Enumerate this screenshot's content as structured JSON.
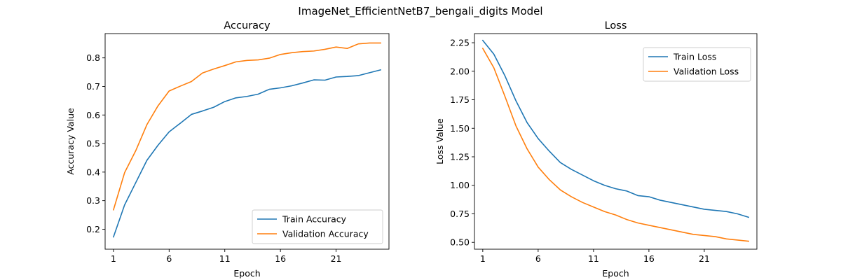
{
  "figure_title": "ImageNet_EfficientNetB7_bengali_digits Model",
  "chart_data": [
    {
      "type": "line",
      "title": "Accuracy",
      "xlabel": "Epoch",
      "ylabel": "Accuracy Value",
      "xlim": [
        0.25,
        25.75
      ],
      "ylim": [
        0.13,
        0.885
      ],
      "xticks": [
        1,
        6,
        11,
        16,
        21
      ],
      "yticks": [
        0.2,
        0.3,
        0.4,
        0.5,
        0.6,
        0.7,
        0.8
      ],
      "ytick_decimals": 1,
      "legend_position": "lower-right",
      "x": [
        1,
        2,
        3,
        4,
        5,
        6,
        7,
        8,
        9,
        10,
        11,
        12,
        13,
        14,
        15,
        16,
        17,
        18,
        19,
        20,
        21,
        22,
        23,
        24,
        25
      ],
      "series": [
        {
          "name": "Train Accuracy",
          "color": "#1f77b4",
          "values": [
            0.173,
            0.285,
            0.363,
            0.441,
            0.494,
            0.541,
            0.571,
            0.602,
            0.614,
            0.627,
            0.647,
            0.66,
            0.665,
            0.673,
            0.69,
            0.695,
            0.702,
            0.712,
            0.723,
            0.722,
            0.733,
            0.735,
            0.738,
            0.748,
            0.758
          ]
        },
        {
          "name": "Validation Accuracy",
          "color": "#ff7f0e",
          "values": [
            0.268,
            0.398,
            0.475,
            0.566,
            0.632,
            0.684,
            0.701,
            0.717,
            0.747,
            0.761,
            0.773,
            0.786,
            0.791,
            0.793,
            0.799,
            0.812,
            0.818,
            0.822,
            0.824,
            0.83,
            0.838,
            0.833,
            0.849,
            0.852,
            0.852
          ]
        }
      ]
    },
    {
      "type": "line",
      "title": "Loss",
      "xlabel": "Epoch",
      "ylabel": "Loss Value",
      "xlim": [
        0.25,
        25.75
      ],
      "ylim": [
        0.44,
        2.33
      ],
      "xticks": [
        1,
        6,
        11,
        16,
        21
      ],
      "yticks": [
        0.5,
        0.75,
        1.0,
        1.25,
        1.5,
        1.75,
        2.0,
        2.25
      ],
      "ytick_decimals": 2,
      "legend_position": "upper-right",
      "x": [
        1,
        2,
        3,
        4,
        5,
        6,
        7,
        8,
        9,
        10,
        11,
        12,
        13,
        14,
        15,
        16,
        17,
        18,
        19,
        20,
        21,
        22,
        23,
        24,
        25
      ],
      "series": [
        {
          "name": "Train Loss",
          "color": "#1f77b4",
          "values": [
            2.27,
            2.15,
            1.96,
            1.74,
            1.55,
            1.41,
            1.3,
            1.2,
            1.14,
            1.09,
            1.04,
            1.0,
            0.97,
            0.95,
            0.91,
            0.9,
            0.87,
            0.85,
            0.83,
            0.81,
            0.79,
            0.78,
            0.77,
            0.75,
            0.72
          ]
        },
        {
          "name": "Validation Loss",
          "color": "#ff7f0e",
          "values": [
            2.2,
            2.03,
            1.78,
            1.52,
            1.32,
            1.16,
            1.05,
            0.96,
            0.9,
            0.85,
            0.81,
            0.77,
            0.74,
            0.7,
            0.67,
            0.65,
            0.63,
            0.61,
            0.59,
            0.57,
            0.56,
            0.55,
            0.53,
            0.52,
            0.51
          ]
        }
      ]
    }
  ]
}
